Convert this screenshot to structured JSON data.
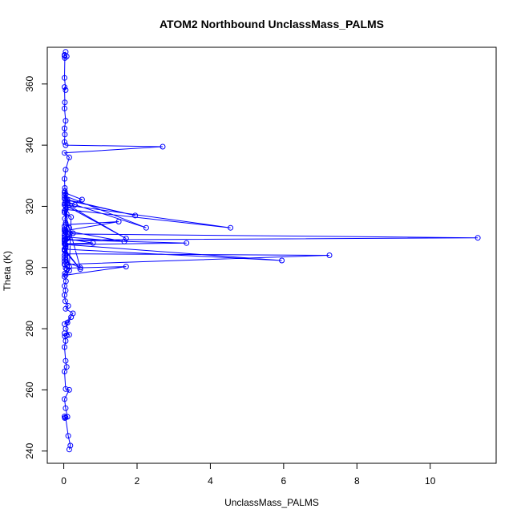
{
  "chart_data": {
    "type": "scatter",
    "title": "ATOM2 Northbound UnclassMass_PALMS",
    "xlabel": "UnclassMass_PALMS",
    "ylabel": "Theta (K)",
    "xlim": [
      -0.45,
      11.8
    ],
    "ylim": [
      236.0,
      372.0
    ],
    "xticks": [
      0,
      2,
      4,
      6,
      8,
      10
    ],
    "yticks": [
      240,
      260,
      280,
      300,
      320,
      340,
      360
    ],
    "grid": false,
    "legend": "none",
    "color": "#0000ff",
    "markers": "open-circle",
    "connected": true,
    "series": [
      {
        "x": [
          0.15,
          0.18,
          0.12,
          0.05,
          0.02,
          0.03,
          0.1,
          0.05,
          0.02,
          0.15,
          0.05,
          0.02,
          0.08,
          0.05,
          0.02,
          0.05,
          0.03,
          0.08,
          0.02,
          0.15,
          0.05,
          0.2,
          0.1,
          0.02,
          0.25,
          0.05,
          0.12,
          0.04,
          0.02,
          0.05,
          0.02,
          0.06,
          0.02,
          0.03,
          0.08,
          0.02,
          0.05,
          0.02,
          0.03,
          0.05,
          0.02,
          0.1,
          0.05,
          0.02,
          0.15,
          0.05,
          0.03,
          0.08,
          0.05,
          0.3,
          0.1,
          0.02,
          0.05,
          0.02,
          0.2,
          0.15,
          0.05,
          1.7,
          0.05,
          0.02,
          0.05,
          7.25,
          0.03,
          0.02,
          0.45,
          0.02,
          0.15,
          0.02,
          0.05,
          5.95,
          0.02,
          0.1,
          0.03,
          3.35,
          0.02,
          0.05,
          0.02,
          0.8,
          0.02,
          0.04,
          1.65,
          0.05,
          0.05,
          11.3,
          0.03,
          0.02,
          0.1,
          0.25,
          0.02,
          1.5,
          0.05,
          0.03,
          1.7,
          0.02,
          4.55,
          0.05,
          0.02,
          2.25,
          0.05,
          0.03,
          0.1,
          1.95,
          0.05,
          0.02,
          0.5,
          0.05,
          0.02,
          0.45,
          0.02,
          0.1,
          0.03,
          0.02,
          0.05,
          0.15,
          0.02,
          2.7,
          0.05,
          0.02,
          0.03,
          0.02,
          0.05,
          0.02,
          0.03,
          0.02,
          0.05,
          0.02,
          0.03,
          0.08,
          0.02,
          0.05,
          0.02
        ],
        "y": [
          240.5,
          241.8,
          245.0,
          251.0,
          251.3,
          250.8,
          251.2,
          254.0,
          257.0,
          260.0,
          260.3,
          266.0,
          267.5,
          269.5,
          274.0,
          276.0,
          277.5,
          277.8,
          278.5,
          278.0,
          280.0,
          283.8,
          282.0,
          281.5,
          285.0,
          286.5,
          287.5,
          289.0,
          291.0,
          292.5,
          294.0,
          295.5,
          297.0,
          298.0,
          299.5,
          301.0,
          302.5,
          304.0,
          305.5,
          307.0,
          308.5,
          310.0,
          311.5,
          312.5,
          313.0,
          314.5,
          316.0,
          317.5,
          319.0,
          320.5,
          321.5,
          322.5,
          324.0,
          318.0,
          316.5,
          299.0,
          297.5,
          300.3,
          299.8,
          303.0,
          304.5,
          304.0,
          301.0,
          306.0,
          299.5,
          305.5,
          300.2,
          310.5,
          307.5,
          302.3,
          306.0,
          311.0,
          307.5,
          308.0,
          309.0,
          306.5,
          307.8,
          308.0,
          309.5,
          310.0,
          308.5,
          312.0,
          309.0,
          309.7,
          311.0,
          313.5,
          309.5,
          311.2,
          312.0,
          315.0,
          314.0,
          321.0,
          309.5,
          320.5,
          313.0,
          319.0,
          323.5,
          313.0,
          321.5,
          325.0,
          322.0,
          317.0,
          322.3,
          324.5,
          322.2,
          320.0,
          318.5,
          300.0,
          302.0,
          321.0,
          326.0,
          329.0,
          332.0,
          336.0,
          337.5,
          339.5,
          340.0,
          341.0,
          343.5,
          345.5,
          348.0,
          352.0,
          354.0,
          359.0,
          358.0,
          362.0,
          368.5,
          369.0,
          369.5,
          370.5,
          369.2
        ]
      }
    ]
  }
}
